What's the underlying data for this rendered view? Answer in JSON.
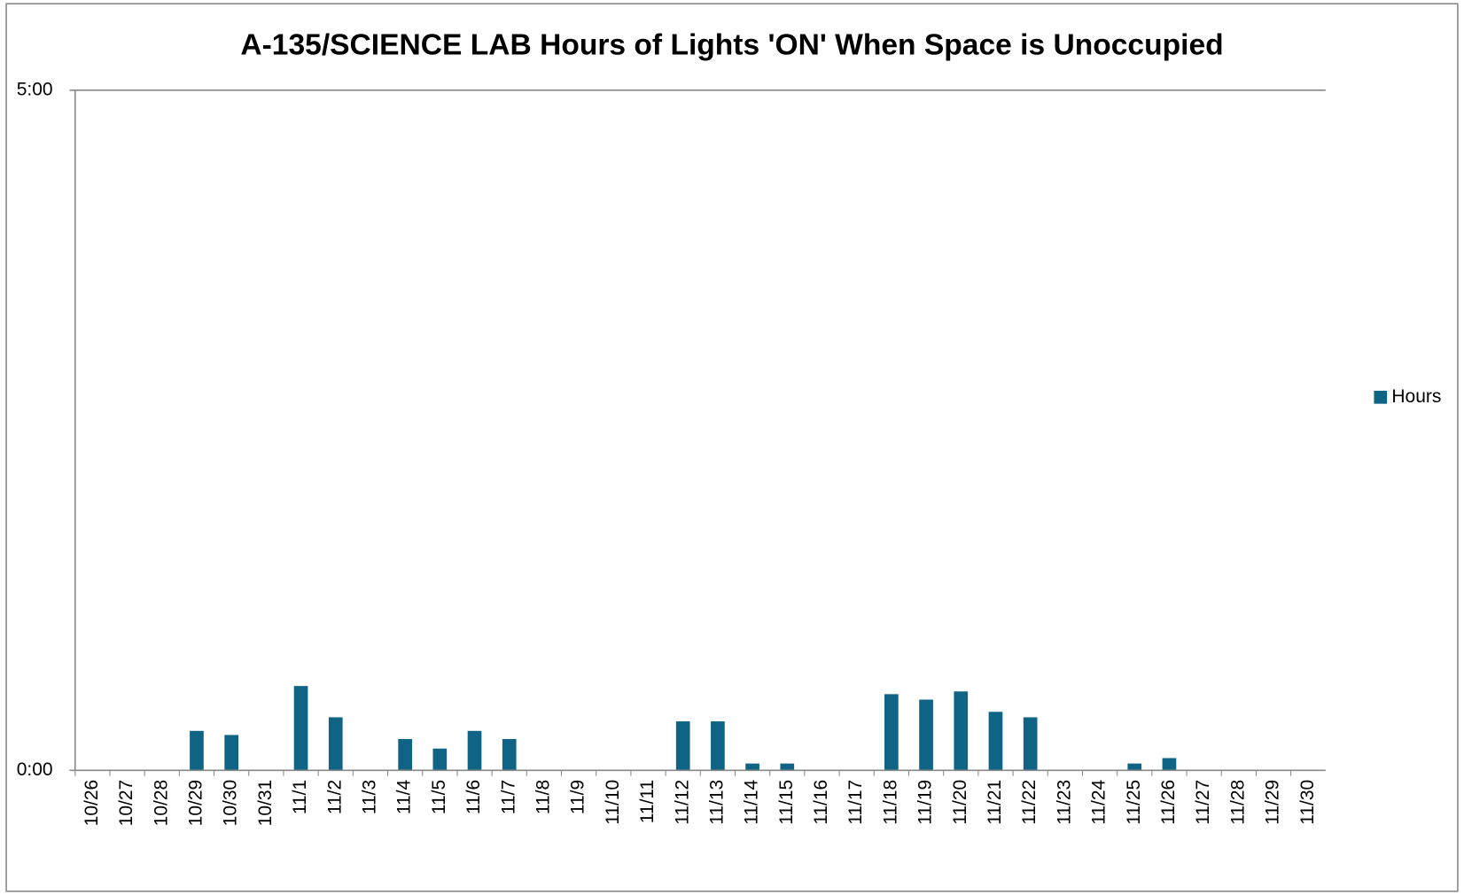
{
  "chart_data": {
    "type": "bar",
    "title": "A-135/SCIENCE LAB Hours of Lights 'ON' When Space is Unoccupied",
    "categories": [
      "10/26",
      "10/27",
      "10/28",
      "10/29",
      "10/30",
      "10/31",
      "11/1",
      "11/2",
      "11/3",
      "11/4",
      "11/5",
      "11/6",
      "11/7",
      "11/8",
      "11/9",
      "11/10",
      "11/11",
      "11/12",
      "11/13",
      "11/14",
      "11/15",
      "11/16",
      "11/17",
      "11/18",
      "11/19",
      "11/20",
      "11/21",
      "11/22",
      "11/23",
      "11/24",
      "11/25",
      "11/26",
      "11/27",
      "11/28",
      "11/29",
      "11/30"
    ],
    "series": [
      {
        "name": "Hours",
        "color": "#0f6384",
        "values": [
          0,
          0,
          0,
          0.29,
          0.26,
          0,
          0.62,
          0.39,
          0,
          0.23,
          0.16,
          0.29,
          0.23,
          0,
          0,
          0,
          0,
          0.36,
          0.36,
          0.05,
          0.05,
          0,
          0,
          0.56,
          0.52,
          0.58,
          0.43,
          0.39,
          0,
          0,
          0.05,
          0.09,
          0,
          0,
          0,
          0
        ]
      }
    ],
    "ylim": [
      0,
      5
    ],
    "yticks": [
      {
        "value": 0,
        "label": "0:00"
      },
      {
        "value": 5,
        "label": "5:00"
      }
    ],
    "legend": "right"
  }
}
